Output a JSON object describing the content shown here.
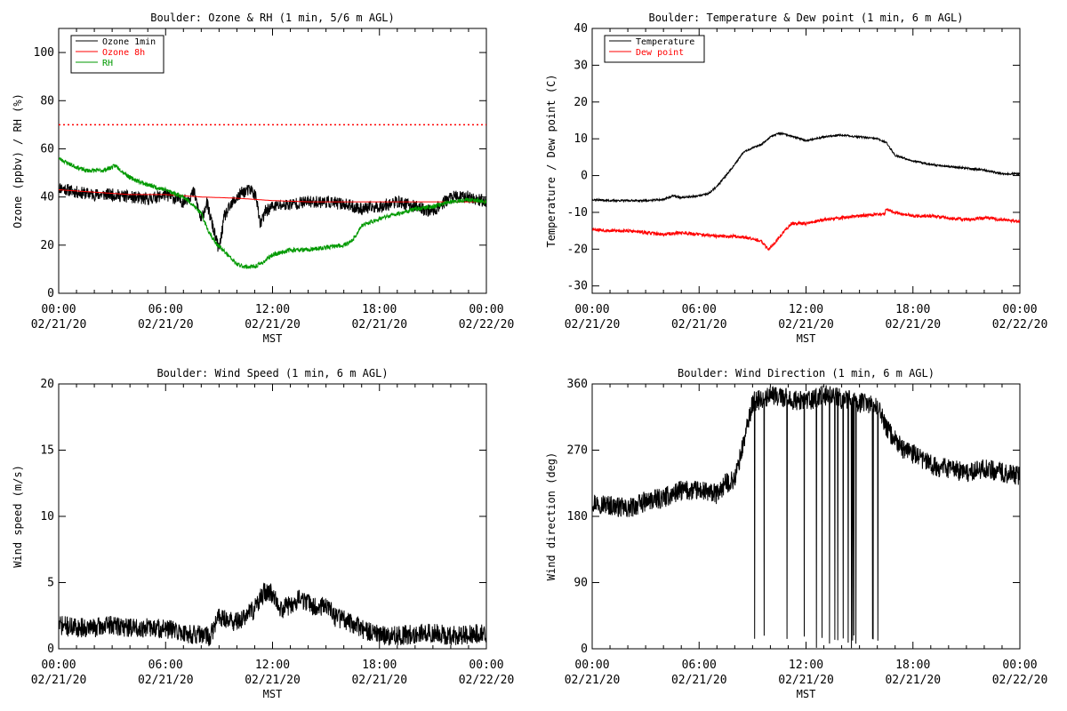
{
  "chart_data": [
    {
      "id": "ozone",
      "type": "line",
      "title": "Boulder: Ozone & RH (1 min, 5/6 m AGL)",
      "xlabel": "MST",
      "ylabel": "Ozone (ppbv) / RH (%)",
      "xlim": [
        0,
        24
      ],
      "ylim": [
        0,
        110
      ],
      "xticks": [
        {
          "x": 0,
          "time": "00:00",
          "date": "02/21/20"
        },
        {
          "x": 6,
          "time": "06:00",
          "date": "02/21/20"
        },
        {
          "x": 12,
          "time": "12:00",
          "date": "02/21/20"
        },
        {
          "x": 18,
          "time": "18:00",
          "date": "02/21/20"
        },
        {
          "x": 24,
          "time": "00:00",
          "date": "02/22/20"
        }
      ],
      "yticks": [
        0,
        20,
        40,
        60,
        80,
        100
      ],
      "grid": false,
      "legend_position": "top-left",
      "reference_lines": [
        {
          "y": 70,
          "color": "#ff0000",
          "style": "dotted"
        }
      ],
      "series": [
        {
          "name": "Ozone 1min",
          "color": "#000000",
          "noise": 2.6,
          "seed": 11,
          "x": [
            0,
            1,
            2,
            3,
            4,
            5,
            6,
            7,
            7.6,
            8,
            8.3,
            8.7,
            9,
            9.3,
            9.8,
            10.3,
            10.8,
            11.1,
            11.3,
            11.6,
            12,
            13,
            14,
            15,
            16,
            17,
            18,
            19,
            20,
            21,
            22,
            23,
            24
          ],
          "y": [
            44,
            42,
            41,
            41,
            40,
            39,
            41,
            38,
            42,
            30,
            38,
            26,
            18,
            32,
            38,
            42,
            43,
            40,
            28,
            34,
            36,
            37,
            38,
            38,
            37,
            35,
            36,
            38,
            36,
            34,
            40,
            40,
            38
          ]
        },
        {
          "name": "Ozone 8h",
          "color": "#ff0000",
          "noise": 0,
          "seed": 0,
          "x": [
            0,
            2,
            4,
            6,
            8,
            10,
            12,
            14,
            16,
            18,
            20,
            22,
            24
          ],
          "y": [
            43,
            42,
            41,
            41,
            40,
            39.5,
            38.5,
            38,
            38,
            38,
            38,
            38,
            38
          ]
        },
        {
          "name": "RH",
          "color": "#009900",
          "noise": 0.9,
          "seed": 23,
          "x": [
            0,
            0.8,
            1.5,
            2.5,
            3.2,
            4,
            5,
            6,
            7,
            7.5,
            8,
            8.4,
            8.8,
            9.2,
            9.6,
            10,
            10.5,
            11,
            11.5,
            12,
            13,
            14,
            15,
            16,
            16.5,
            17,
            18,
            19,
            20,
            21,
            22,
            23,
            24
          ],
          "y": [
            56,
            53,
            51,
            51,
            53,
            48,
            45,
            43,
            40,
            37,
            33,
            26,
            21,
            18,
            15,
            12,
            11,
            11,
            13,
            16,
            18,
            18,
            19,
            20,
            22,
            28,
            31,
            33,
            35,
            36,
            38,
            39,
            38
          ]
        }
      ]
    },
    {
      "id": "temperature",
      "type": "line",
      "title": "Boulder: Temperature & Dew point (1 min, 6 m AGL)",
      "xlabel": "MST",
      "ylabel": "Temperature / Dew point (C)",
      "xlim": [
        0,
        24
      ],
      "ylim": [
        -32,
        40
      ],
      "xticks": [
        {
          "x": 0,
          "time": "00:00",
          "date": "02/21/20"
        },
        {
          "x": 6,
          "time": "06:00",
          "date": "02/21/20"
        },
        {
          "x": 12,
          "time": "12:00",
          "date": "02/21/20"
        },
        {
          "x": 18,
          "time": "18:00",
          "date": "02/21/20"
        },
        {
          "x": 24,
          "time": "00:00",
          "date": "02/22/20"
        }
      ],
      "yticks": [
        -30,
        -20,
        -10,
        0,
        10,
        20,
        30,
        40
      ],
      "grid": false,
      "legend_position": "top-left",
      "series": [
        {
          "name": "Temperature",
          "color": "#000000",
          "noise": 0.25,
          "seed": 37,
          "x": [
            0,
            1,
            2,
            3,
            4,
            4.5,
            5,
            6,
            6.5,
            7,
            7.5,
            8,
            8.5,
            9,
            9.5,
            10,
            10.5,
            11,
            12,
            13,
            14,
            15,
            16,
            16.5,
            17,
            18,
            19,
            20,
            21,
            22,
            23,
            24
          ],
          "y": [
            -6.5,
            -6.8,
            -6.8,
            -6.8,
            -6.5,
            -5.5,
            -6,
            -5.5,
            -5,
            -3,
            0,
            3,
            6.5,
            7.5,
            8.5,
            10.5,
            11.5,
            11,
            9.5,
            10.5,
            11,
            10.5,
            10,
            9,
            5.5,
            4,
            3,
            2.5,
            2,
            1.5,
            0.5,
            0.5
          ]
        },
        {
          "name": "Dew point",
          "color": "#ff0000",
          "noise": 0.45,
          "seed": 53,
          "x": [
            0,
            1,
            2,
            3,
            4,
            5,
            6,
            7,
            8,
            9,
            9.5,
            9.9,
            10.3,
            10.8,
            11.2,
            12,
            13,
            14,
            15,
            16,
            16.4,
            16.5,
            17,
            18,
            19,
            20,
            21,
            22,
            23,
            24
          ],
          "y": [
            -14.5,
            -15,
            -15,
            -15.5,
            -16,
            -15.5,
            -16,
            -16.5,
            -16.5,
            -17,
            -18,
            -20,
            -18,
            -15,
            -13,
            -13,
            -12,
            -11.5,
            -11,
            -10.5,
            -10.5,
            -9,
            -10,
            -11,
            -11,
            -11.5,
            -12,
            -11.5,
            -12,
            -12.5
          ]
        }
      ]
    },
    {
      "id": "windspeed",
      "type": "line",
      "title": "Boulder: Wind Speed (1 min, 6 m AGL)",
      "xlabel": "MST",
      "ylabel": "Wind speed (m/s)",
      "xlim": [
        0,
        24
      ],
      "ylim": [
        0,
        20
      ],
      "xticks": [
        {
          "x": 0,
          "time": "00:00",
          "date": "02/21/20"
        },
        {
          "x": 6,
          "time": "06:00",
          "date": "02/21/20"
        },
        {
          "x": 12,
          "time": "12:00",
          "date": "02/21/20"
        },
        {
          "x": 18,
          "time": "18:00",
          "date": "02/21/20"
        },
        {
          "x": 24,
          "time": "00:00",
          "date": "02/22/20"
        }
      ],
      "yticks": [
        0,
        5,
        10,
        15,
        20
      ],
      "grid": false,
      "series": [
        {
          "name": "",
          "color": "#000000",
          "noise": 0.75,
          "seed": 71,
          "x": [
            0,
            1,
            2,
            3,
            4,
            5,
            6,
            7,
            8,
            8.5,
            9,
            9.5,
            10,
            10.5,
            11,
            11.5,
            12,
            12.5,
            13,
            13.5,
            14,
            14.5,
            15,
            15.5,
            16,
            17,
            18,
            19,
            20,
            21,
            22,
            23,
            24
          ],
          "y": [
            1.8,
            1.6,
            1.6,
            1.8,
            1.6,
            1.6,
            1.5,
            1.2,
            1.0,
            0.9,
            2.5,
            2.2,
            2.0,
            2.5,
            3.0,
            4.2,
            4.2,
            3.0,
            3.3,
            3.8,
            3.5,
            3.0,
            3.4,
            2.4,
            2.2,
            1.5,
            1.0,
            1.0,
            1.1,
            1.2,
            1.0,
            1.1,
            1.2
          ]
        }
      ]
    },
    {
      "id": "winddir",
      "type": "line",
      "title": "Boulder: Wind Direction (1 min, 6 m AGL)",
      "xlabel": "MST",
      "ylabel": "Wind direction (deg)",
      "xlim": [
        0,
        24
      ],
      "ylim": [
        0,
        360
      ],
      "xticks": [
        {
          "x": 0,
          "time": "00:00",
          "date": "02/21/20"
        },
        {
          "x": 6,
          "time": "06:00",
          "date": "02/21/20"
        },
        {
          "x": 12,
          "time": "12:00",
          "date": "02/21/20"
        },
        {
          "x": 18,
          "time": "18:00",
          "date": "02/21/20"
        },
        {
          "x": 24,
          "time": "00:00",
          "date": "02/22/20"
        }
      ],
      "yticks": [
        0,
        90,
        180,
        270,
        360
      ],
      "grid": false,
      "series": [
        {
          "name": "",
          "color": "#000000",
          "noise": 14,
          "seed": 97,
          "wrap": [
            9,
            16.5
          ],
          "x": [
            0,
            1,
            2,
            3,
            4,
            5,
            6,
            7,
            7.5,
            8,
            8.5,
            9,
            10,
            11,
            12,
            13,
            14,
            15,
            16,
            16.5,
            17,
            17.5,
            18,
            19,
            20,
            21,
            22,
            23,
            24
          ],
          "y": [
            200,
            195,
            190,
            200,
            205,
            215,
            215,
            210,
            225,
            230,
            280,
            335,
            345,
            340,
            335,
            345,
            340,
            335,
            330,
            300,
            285,
            270,
            265,
            250,
            245,
            240,
            245,
            240,
            235
          ]
        }
      ]
    }
  ]
}
